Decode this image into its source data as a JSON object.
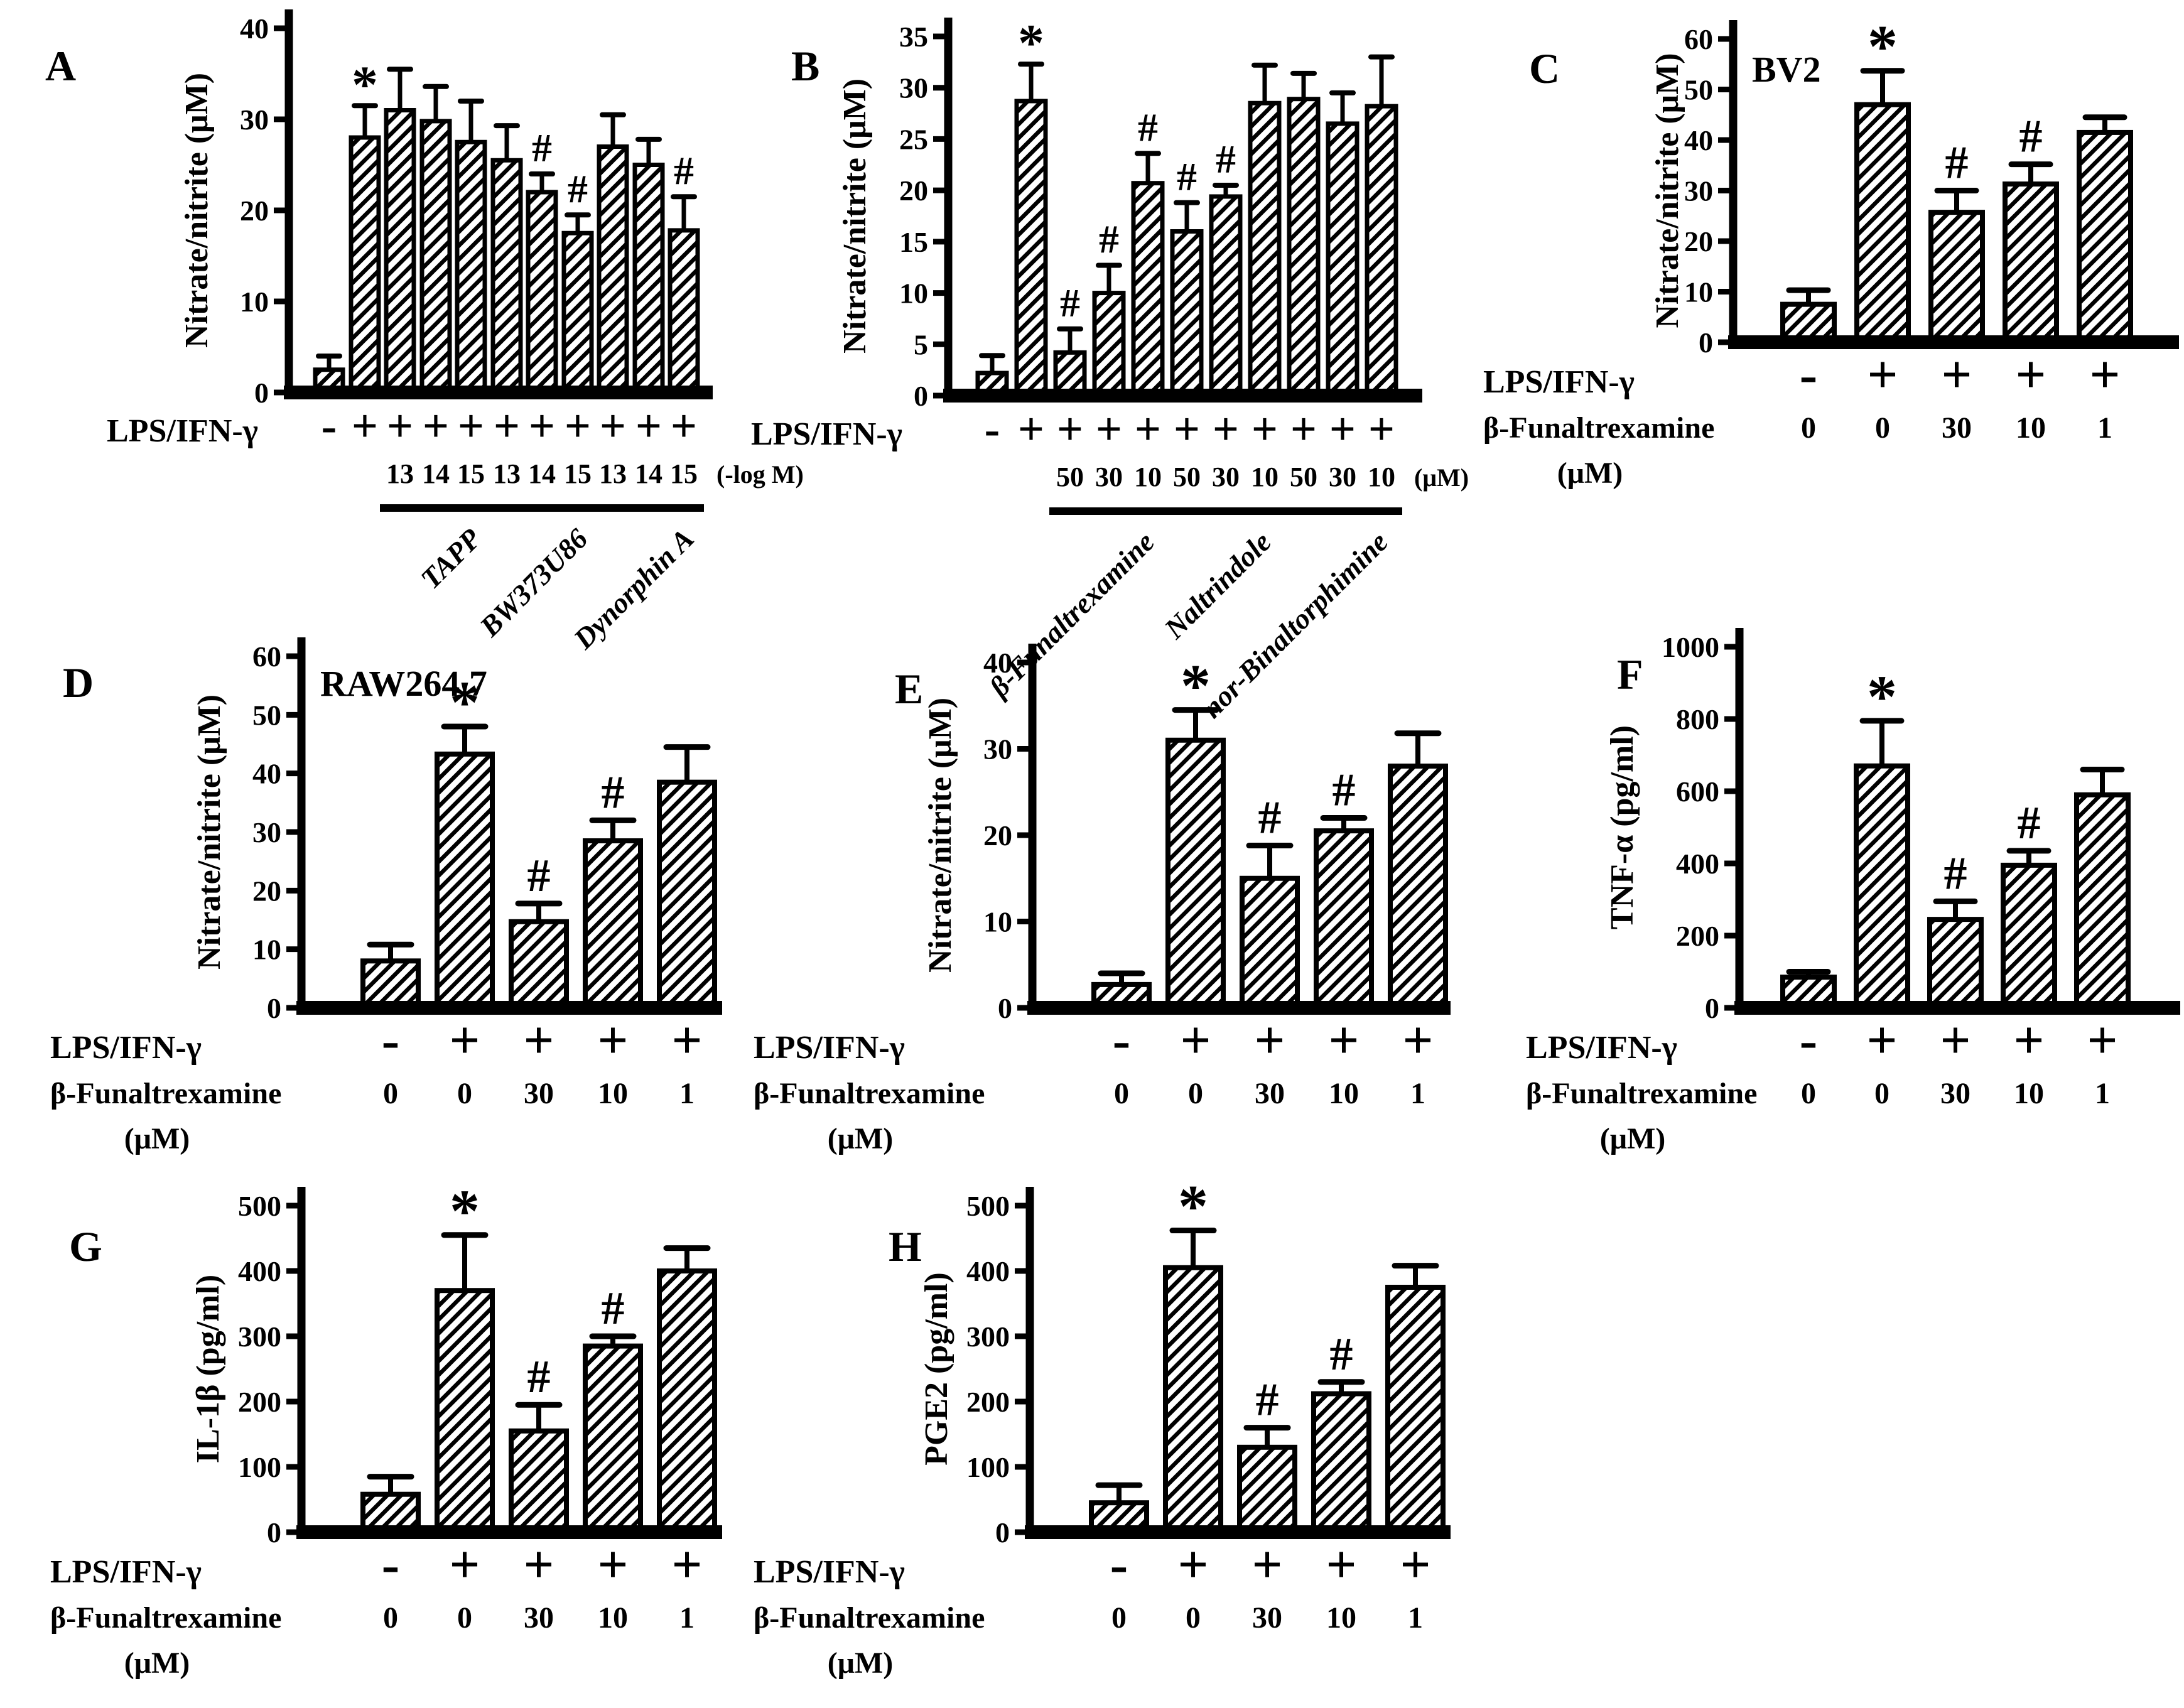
{
  "figure": {
    "background": "#ffffff",
    "ink_color": "#000000",
    "bar_fill": "diagonal-hatch",
    "panel_letters": [
      "A",
      "B",
      "C",
      "D",
      "E",
      "F",
      "G",
      "H"
    ]
  },
  "chart_data": [
    {
      "panel": "A",
      "type": "bar",
      "title": "",
      "ylabel": "Nitrate/nitrite (μM)",
      "ylim": [
        0,
        40
      ],
      "yticks": [
        0,
        10,
        20,
        30,
        40
      ],
      "row1_label": "LPS/IFN-γ",
      "row1": [
        "-",
        "+",
        "+",
        "+",
        "+",
        "+",
        "+",
        "+",
        "+",
        "+",
        "+"
      ],
      "row2_label": "",
      "row2": [
        "",
        "",
        "13",
        "14",
        "15",
        "13",
        "14",
        "15",
        "13",
        "14",
        "15"
      ],
      "row2_unit": "(-log M)",
      "unit_below_label": "",
      "values": [
        2.5,
        28,
        31,
        29.8,
        27.5,
        25.5,
        22,
        17.5,
        27,
        25,
        17.8
      ],
      "errors": [
        1.5,
        3.5,
        4.5,
        3.8,
        4.5,
        3.8,
        2,
        2,
        3.5,
        2.8,
        3.7
      ],
      "sig": [
        "",
        "*",
        "",
        "",
        "",
        "",
        "#",
        "#",
        "",
        "",
        "#"
      ],
      "groups": [
        {
          "label": "TAPP",
          "from": 2,
          "to": 4
        },
        {
          "label": "BW373U86",
          "from": 5,
          "to": 7
        },
        {
          "label": "Dynorphin A",
          "from": 8,
          "to": 10
        }
      ]
    },
    {
      "panel": "B",
      "type": "bar",
      "title": "",
      "ylabel": "Nitrate/nitrite (μM)",
      "ylim": [
        0,
        35
      ],
      "yticks": [
        0,
        5,
        10,
        15,
        20,
        25,
        30,
        35
      ],
      "row1_label": "LPS/IFN-γ",
      "row1": [
        "-",
        "+",
        "+",
        "+",
        "+",
        "+",
        "+",
        "+",
        "+",
        "+",
        "+"
      ],
      "row2_label": "",
      "row2": [
        "",
        "",
        "50",
        "30",
        "10",
        "50",
        "30",
        "10",
        "50",
        "30",
        "10"
      ],
      "row2_unit": "(μM)",
      "unit_below_label": "",
      "values": [
        2.2,
        28.7,
        4.2,
        10,
        20.7,
        16,
        19.4,
        28.5,
        28.9,
        26.5,
        28.2
      ],
      "errors": [
        1.7,
        3.6,
        2.3,
        2.7,
        2.9,
        2.8,
        1.1,
        3.7,
        2.5,
        3,
        4.8
      ],
      "sig": [
        "",
        "*",
        "#",
        "#",
        "#",
        "#",
        "#",
        "",
        "",
        "",
        ""
      ],
      "groups": [
        {
          "label": "β-Funaltrexamine",
          "from": 2,
          "to": 4
        },
        {
          "label": "Naltrindole",
          "from": 5,
          "to": 7
        },
        {
          "label": "nor-Binaltorphimine",
          "from": 8,
          "to": 10
        }
      ]
    },
    {
      "panel": "C",
      "type": "bar",
      "title": "BV2",
      "ylabel": "Nitrate/nitrite (μM)",
      "ylim": [
        0,
        60
      ],
      "yticks": [
        0,
        10,
        20,
        30,
        40,
        50,
        60
      ],
      "row1_label": "LPS/IFN-γ",
      "row1": [
        "-",
        "+",
        "+",
        "+",
        "+"
      ],
      "row2_label": "β-Funaltrexamine",
      "row2": [
        "0",
        "0",
        "30",
        "10",
        "1"
      ],
      "row2_unit": "",
      "unit_below_label": "(μM)",
      "values": [
        7.5,
        47,
        25.7,
        31.3,
        41.5
      ],
      "errors": [
        2.8,
        6.7,
        4.3,
        3.9,
        3
      ],
      "sig": [
        "",
        "*",
        "#",
        "#",
        ""
      ],
      "groups": []
    },
    {
      "panel": "D",
      "type": "bar",
      "title": "RAW264.7",
      "ylabel": "Nitrate/nitrite (μM)",
      "ylim": [
        0,
        60
      ],
      "yticks": [
        0,
        10,
        20,
        30,
        40,
        50,
        60
      ],
      "row1_label": "LPS/IFN-γ",
      "row1": [
        "-",
        "+",
        "+",
        "+",
        "+"
      ],
      "row2_label": "β-Funaltrexamine",
      "row2": [
        "0",
        "0",
        "30",
        "10",
        "1"
      ],
      "row2_unit": "",
      "unit_below_label": "(μM)",
      "values": [
        8,
        43.3,
        14.7,
        28.5,
        38.5
      ],
      "errors": [
        2.8,
        4.7,
        3.1,
        3.5,
        6
      ],
      "sig": [
        "",
        "*",
        "#",
        "#",
        ""
      ],
      "groups": []
    },
    {
      "panel": "E",
      "type": "bar",
      "title": "",
      "ylabel": "Nitrate/nitrite (μM)",
      "ylim": [
        0,
        40
      ],
      "yticks": [
        0,
        10,
        20,
        30,
        40
      ],
      "row1_label": "LPS/IFN-γ",
      "row1": [
        "-",
        "+",
        "+",
        "+",
        "+"
      ],
      "row2_label": "β-Funaltrexamine",
      "row2": [
        "0",
        "0",
        "30",
        "10",
        "1"
      ],
      "row2_unit": "",
      "unit_below_label": "(μM)",
      "values": [
        2.7,
        31,
        15,
        20.5,
        28
      ],
      "errors": [
        1.3,
        3.5,
        3.8,
        1.5,
        3.8
      ],
      "sig": [
        "",
        "*",
        "#",
        "#",
        ""
      ],
      "groups": []
    },
    {
      "panel": "F",
      "type": "bar",
      "title": "",
      "ylabel": "TNF-α (pg/ml)",
      "ylim": [
        0,
        1000
      ],
      "yticks": [
        0,
        200,
        400,
        600,
        800,
        1000
      ],
      "row1_label": "LPS/IFN-γ",
      "row1": [
        "-",
        "+",
        "+",
        "+",
        "+"
      ],
      "row2_label": "β-Funaltrexamine",
      "row2": [
        "0",
        "0",
        "30",
        "10",
        "1"
      ],
      "row2_unit": "",
      "unit_below_label": "(μM)",
      "values": [
        85,
        670,
        245,
        395,
        590
      ],
      "errors": [
        15,
        125,
        50,
        40,
        70
      ],
      "sig": [
        "",
        "*",
        "#",
        "#",
        ""
      ],
      "groups": []
    },
    {
      "panel": "G",
      "type": "bar",
      "title": "",
      "ylabel": "IL-1β (pg/ml)",
      "ylim": [
        0,
        500
      ],
      "yticks": [
        0,
        100,
        200,
        300,
        400,
        500
      ],
      "row1_label": "LPS/IFN-γ",
      "row1": [
        "-",
        "+",
        "+",
        "+",
        "+"
      ],
      "row2_label": "β-Funaltrexamine",
      "row2": [
        "0",
        "0",
        "30",
        "10",
        "1"
      ],
      "row2_unit": "",
      "unit_below_label": "(μM)",
      "values": [
        58,
        370,
        155,
        285,
        400
      ],
      "errors": [
        27,
        85,
        40,
        15,
        35
      ],
      "sig": [
        "",
        "*",
        "#",
        "#",
        ""
      ],
      "groups": []
    },
    {
      "panel": "H",
      "type": "bar",
      "title": "",
      "ylabel": "PGE2 (pg/ml)",
      "ylim": [
        0,
        500
      ],
      "yticks": [
        0,
        100,
        200,
        300,
        400,
        500
      ],
      "row1_label": "LPS/IFN-γ",
      "row1": [
        "-",
        "+",
        "+",
        "+",
        "+"
      ],
      "row2_label": "β-Funaltrexamine",
      "row2": [
        "0",
        "0",
        "30",
        "10",
        "1"
      ],
      "row2_unit": "",
      "unit_below_label": "(μM)",
      "values": [
        45,
        405,
        130,
        212,
        375
      ],
      "errors": [
        27,
        57,
        30,
        18,
        33
      ],
      "sig": [
        "",
        "*",
        "#",
        "#",
        ""
      ],
      "groups": []
    }
  ]
}
